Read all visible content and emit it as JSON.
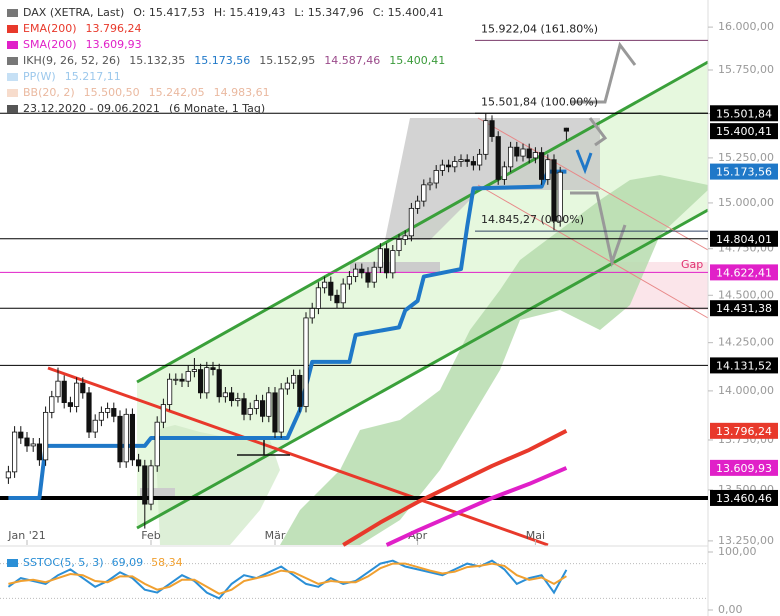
{
  "chart_data": {
    "type": "candlestick",
    "log": true,
    "grid": false,
    "legend": [
      {
        "marker": "#777777",
        "items": [
          {
            "text": "DAX (XETRA, Last)",
            "color": "#333333"
          },
          {
            "text": "O: 15.417,53",
            "color": "#333333"
          },
          {
            "text": "H: 15.419,43",
            "color": "#333333"
          },
          {
            "text": "L: 15.347,96",
            "color": "#333333"
          },
          {
            "text": "C: 15.400,41",
            "color": "#333333"
          }
        ]
      },
      {
        "marker": "#e8392b",
        "items": [
          {
            "text": "EMA(200)",
            "color": "#e8392b"
          },
          {
            "text": "13.796,24",
            "color": "#e8392b"
          }
        ]
      },
      {
        "marker": "#e020c8",
        "items": [
          {
            "text": "SMA(200)",
            "color": "#e020c8"
          },
          {
            "text": "13.609,93",
            "color": "#e020c8"
          }
        ]
      },
      {
        "marker": "#777777",
        "items": [
          {
            "text": "IKH(9, 26, 52, 26)",
            "color": "#555555"
          },
          {
            "text": "15.132,35",
            "color": "#555555"
          },
          {
            "text": "15.173,56",
            "color": "#1f78c8"
          },
          {
            "text": "15.152,95",
            "color": "#555555"
          },
          {
            "text": "14.587,46",
            "color": "#9a4a8a"
          },
          {
            "text": "15.400,41",
            "color": "#3a9a3a"
          }
        ]
      },
      {
        "marker": "#c6e0f5",
        "items": [
          {
            "text": "PP(W)",
            "color": "#9cc8ec"
          },
          {
            "text": "15.217,11",
            "color": "#9cc8ec"
          }
        ]
      },
      {
        "marker": "#f7dccc",
        "items": [
          {
            "text": "BB(20, 2)",
            "color": "#eab9a0"
          },
          {
            "text": "15.500,50",
            "color": "#eab9a0"
          },
          {
            "text": "15.242,05",
            "color": "#eab9a0"
          },
          {
            "text": "14.983,61",
            "color": "#eab9a0"
          }
        ]
      },
      {
        "marker": "#555555",
        "items": [
          {
            "text": "23.12.2020 - 09.06.2021",
            "color": "#333333"
          },
          {
            "text": "(6 Monate, 1 Tag)",
            "color": "#333333"
          }
        ]
      }
    ],
    "xticks": [
      {
        "value": 3,
        "label": "Jan '21"
      },
      {
        "value": 23,
        "label": "Feb"
      },
      {
        "value": 43,
        "label": "Mär"
      },
      {
        "value": 66,
        "label": "Apr"
      },
      {
        "value": 85,
        "label": "Mai"
      }
    ],
    "ylim": [
      13230,
      16160
    ],
    "yticks": [
      {
        "value": 13250,
        "label": "13.250,00"
      },
      {
        "value": 13500,
        "label": "13.500,00"
      },
      {
        "value": 13750,
        "label": "13.750,00"
      },
      {
        "value": 14000,
        "label": "14.000,00"
      },
      {
        "value": 14250,
        "label": "14.250,00"
      },
      {
        "value": 14500,
        "label": "14.500,00"
      },
      {
        "value": 14750,
        "label": "14.750,00"
      },
      {
        "value": 15000,
        "label": "15.000,00"
      },
      {
        "value": 15250,
        "label": "15.250,00"
      },
      {
        "value": 15500,
        "label": "15.500,00"
      },
      {
        "value": 15750,
        "label": "15.750,00"
      },
      {
        "value": 16000,
        "label": "16.000,00"
      }
    ],
    "up_color": "#ffffff",
    "down_color": "#111111",
    "candles": {
      "open": [
        13560,
        13590,
        13790,
        13760,
        13720,
        13730,
        13650,
        13890,
        13970,
        14050,
        13940,
        13920,
        14040,
        13990,
        13790,
        13850,
        13890,
        13910,
        13870,
        13640,
        13880,
        13650,
        13620,
        13430,
        13620,
        13840,
        13930,
        14060,
        14060,
        14050,
        14100,
        14110,
        13990,
        14120,
        14110,
        13970,
        13990,
        13950,
        13960,
        13880,
        13910,
        13950,
        13870,
        13990,
        13790,
        14010,
        14040,
        14080,
        13920,
        14380,
        14430,
        14540,
        14570,
        14500,
        14460,
        14560,
        14600,
        14640,
        14620,
        14570,
        14650,
        14750,
        14620,
        14740,
        14800,
        14820,
        14970,
        15010,
        15100,
        15110,
        15180,
        15210,
        15200,
        15230,
        15240,
        15230,
        15210,
        15270,
        15460,
        15370,
        15130,
        15200,
        15310,
        15260,
        15300,
        15250,
        15280,
        15130,
        15240,
        14900,
        15417.53
      ],
      "high": [
        13620,
        13820,
        13820,
        13790,
        13760,
        13760,
        13920,
        14000,
        14120,
        14080,
        13970,
        14070,
        14070,
        14020,
        13880,
        13920,
        13940,
        13940,
        13900,
        13910,
        13910,
        13680,
        13650,
        13650,
        13870,
        13960,
        14090,
        14090,
        14090,
        14130,
        14170,
        14140,
        14150,
        14150,
        14140,
        14020,
        14020,
        13990,
        13990,
        13940,
        13980,
        13980,
        14020,
        14020,
        14040,
        14070,
        14110,
        14110,
        14410,
        14460,
        14570,
        14600,
        14600,
        14530,
        14590,
        14630,
        14670,
        14670,
        14650,
        14680,
        14780,
        14780,
        14770,
        14830,
        14850,
        15000,
        15040,
        15130,
        15140,
        15210,
        15240,
        15240,
        15260,
        15270,
        15270,
        15260,
        15300,
        15500,
        15490,
        15400,
        15230,
        15340,
        15340,
        15330,
        15330,
        15310,
        15310,
        15270,
        15270,
        15200,
        15419.43
      ],
      "low": [
        13530,
        13560,
        13730,
        13690,
        13690,
        13620,
        13620,
        13860,
        13940,
        13910,
        13890,
        13890,
        13960,
        13760,
        13760,
        13820,
        13860,
        13840,
        13610,
        13610,
        13620,
        13590,
        13310,
        13400,
        13590,
        13810,
        13900,
        14030,
        14020,
        14020,
        14070,
        13960,
        13960,
        14080,
        13940,
        13940,
        13920,
        13920,
        13850,
        13850,
        13880,
        13840,
        13840,
        13760,
        13760,
        13980,
        14010,
        13890,
        13890,
        14350,
        14400,
        14510,
        14470,
        14430,
        14430,
        14530,
        14570,
        14590,
        14540,
        14540,
        14620,
        14590,
        14590,
        14710,
        14770,
        14790,
        14940,
        14980,
        15070,
        15080,
        15150,
        15170,
        15170,
        15200,
        15200,
        15180,
        15180,
        15240,
        15340,
        15100,
        15100,
        15170,
        15230,
        15230,
        15220,
        15220,
        15100,
        15100,
        14850,
        14870,
        15347.96
      ],
      "close": [
        13590,
        13790,
        13760,
        13720,
        13730,
        13650,
        13890,
        13970,
        14050,
        13940,
        13920,
        14040,
        13990,
        13790,
        13850,
        13890,
        13910,
        13870,
        13640,
        13880,
        13650,
        13620,
        13430,
        13620,
        13840,
        13930,
        14060,
        14060,
        14050,
        14100,
        14110,
        13990,
        14120,
        14110,
        13970,
        13990,
        13950,
        13960,
        13880,
        13910,
        13950,
        13870,
        13990,
        13790,
        14010,
        14040,
        14080,
        13920,
        14380,
        14430,
        14540,
        14570,
        14500,
        14460,
        14560,
        14600,
        14640,
        14620,
        14570,
        14650,
        14750,
        14620,
        14740,
        14800,
        14820,
        14970,
        15010,
        15100,
        15110,
        15180,
        15210,
        15200,
        15230,
        15240,
        15230,
        15210,
        15270,
        15460,
        15370,
        15130,
        15200,
        15310,
        15260,
        15300,
        15250,
        15280,
        15130,
        15240,
        14900,
        15170,
        15400.41
      ]
    },
    "series": [
      {
        "name": "IKH",
        "color": "#1f78c8",
        "width": 4,
        "x": [
          0,
          5,
          6,
          22,
          23,
          45,
          46,
          47,
          49,
          55,
          56,
          63,
          64,
          66,
          67,
          73,
          74,
          75,
          86,
          87,
          90
        ],
        "values": [
          13460,
          13460,
          13720,
          13720,
          13760,
          13760,
          13830,
          13900,
          14150,
          14150,
          14290,
          14330,
          14420,
          14470,
          14600,
          14640,
          14870,
          15080,
          15090,
          15173.56,
          15173.56
        ]
      },
      {
        "name": "EMA(200)",
        "color": "#e8392b",
        "width": 4,
        "x": [
          54,
          60,
          66,
          72,
          78,
          84,
          90
        ],
        "values": [
          13230,
          13340,
          13440,
          13530,
          13620,
          13700,
          13796.24
        ]
      },
      {
        "name": "SMA(200)",
        "color": "#e020c8",
        "width": 4,
        "x": [
          61,
          66,
          72,
          78,
          84,
          90
        ],
        "values": [
          13230,
          13300,
          13380,
          13460,
          13530,
          13609.93
        ]
      }
    ],
    "levels": [
      {
        "value": 15501.84,
        "label": "15.501,84",
        "color": "#000000",
        "line": true
      },
      {
        "value": 15400.41,
        "label": "15.400,41",
        "color": "#000000",
        "line": false
      },
      {
        "value": 15173.56,
        "label": "15.173,56",
        "color": "#1f78c8",
        "line": false
      },
      {
        "value": 14804.01,
        "label": "14.804,01",
        "color": "#000000",
        "line": true
      },
      {
        "value": 14622.41,
        "label": "14.622,41",
        "color": "#e020c8",
        "line": true
      },
      {
        "value": 14431.38,
        "label": "14.431,38",
        "color": "#000000",
        "line": true
      },
      {
        "value": 14131.52,
        "label": "14.131,52",
        "color": "#000000",
        "line": true
      },
      {
        "value": 13796.24,
        "label": "13.796,24",
        "color": "#e8392b",
        "line": false
      },
      {
        "value": 13609.93,
        "label": "13.609,93",
        "color": "#e020c8",
        "line": false
      },
      {
        "value": 13460.46,
        "label": "13.460,46",
        "color": "#000000",
        "line": true
      }
    ],
    "fibs": [
      {
        "value": 15922.04,
        "label": "15.922,04 (161.80%)",
        "color": "#7a3a6a"
      },
      {
        "value": 15501.84,
        "label": "15.501,84 (100.00%)",
        "color": "#000000"
      },
      {
        "value": 14845.27,
        "label": "14.845,27 (0.00%)",
        "color": "#334466"
      }
    ],
    "gap_label": "Gap",
    "stoch": {
      "label": "SSTOC(5, 5, 3)",
      "value_labels": [
        "69,09",
        "58,34"
      ],
      "ylim": [
        0,
        100
      ],
      "yticks": [
        {
          "value": 100,
          "label": "100,00"
        },
        {
          "value": 0,
          "label": "0,00"
        }
      ],
      "levels": [
        80,
        20
      ],
      "x": [
        0,
        2,
        4,
        6,
        8,
        10,
        12,
        14,
        16,
        18,
        20,
        22,
        24,
        26,
        28,
        30,
        32,
        34,
        36,
        38,
        40,
        42,
        44,
        46,
        48,
        50,
        52,
        54,
        56,
        58,
        60,
        62,
        64,
        66,
        68,
        70,
        72,
        74,
        76,
        78,
        80,
        82,
        84,
        86,
        88,
        90
      ],
      "series": [
        {
          "name": "K",
          "color": "#2b8fd6",
          "values": [
            40,
            55,
            50,
            45,
            60,
            70,
            55,
            40,
            50,
            65,
            55,
            35,
            30,
            45,
            60,
            50,
            30,
            20,
            45,
            60,
            55,
            65,
            75,
            60,
            45,
            40,
            55,
            45,
            50,
            65,
            80,
            85,
            75,
            70,
            65,
            60,
            70,
            80,
            75,
            85,
            70,
            45,
            55,
            60,
            30,
            69.09
          ]
        },
        {
          "name": "D",
          "color": "#f0a030",
          "values": [
            45,
            50,
            52,
            48,
            55,
            62,
            60,
            50,
            48,
            58,
            58,
            45,
            35,
            40,
            52,
            52,
            40,
            28,
            35,
            50,
            55,
            60,
            68,
            65,
            55,
            45,
            50,
            48,
            48,
            58,
            72,
            80,
            80,
            74,
            68,
            63,
            66,
            74,
            76,
            80,
            76,
            60,
            52,
            56,
            45,
            58.34
          ]
        }
      ]
    }
  }
}
